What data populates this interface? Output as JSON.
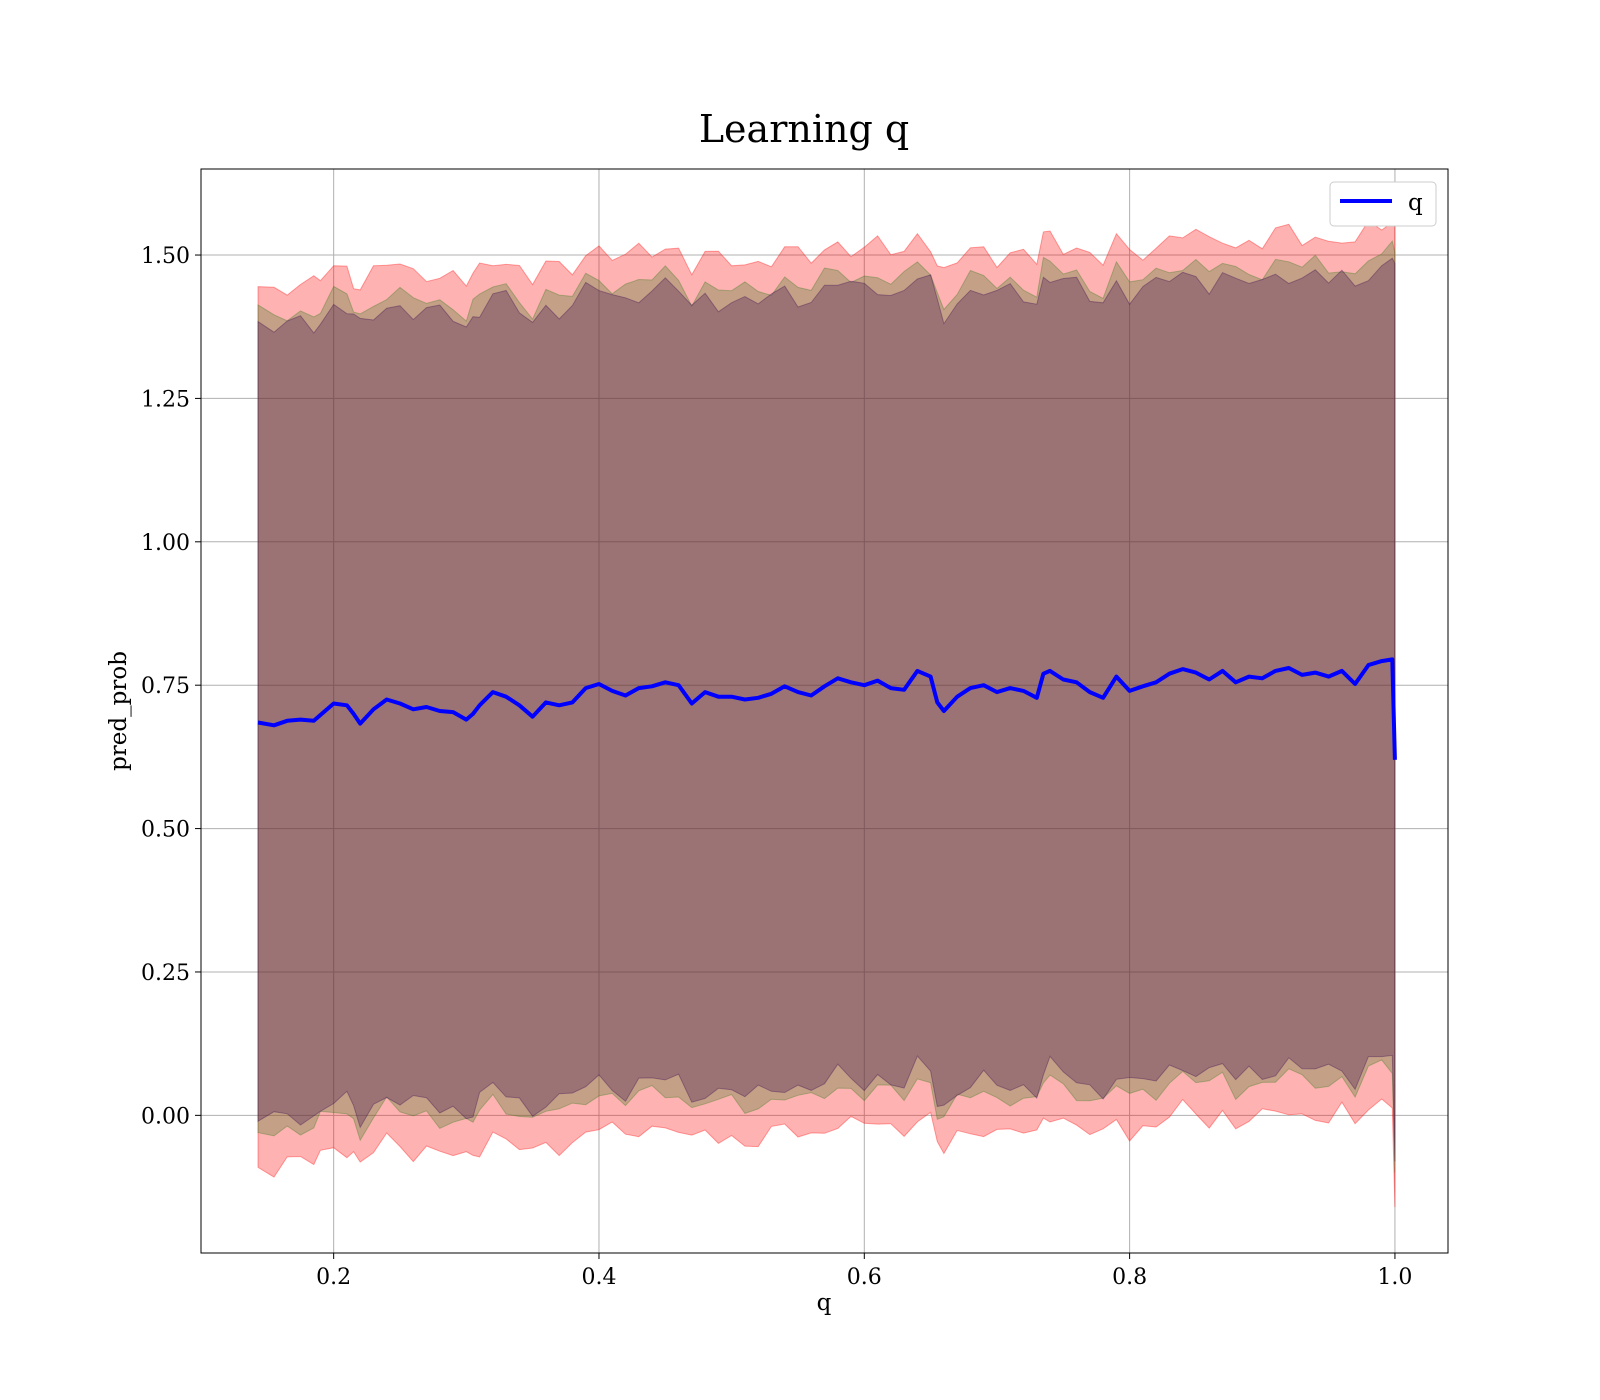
{
  "chart_data": {
    "type": "line",
    "title": "Learning q",
    "xlabel": "q",
    "ylabel": "pred_prob",
    "xlim": [
      0.1,
      1.04
    ],
    "ylim": [
      -0.24,
      1.65
    ],
    "xticks": [
      0.2,
      0.4,
      0.6,
      0.8,
      1.0
    ],
    "xtick_labels": [
      "0.2",
      "0.4",
      "0.6",
      "0.8",
      "1.0"
    ],
    "yticks": [
      0.0,
      0.25,
      0.5,
      0.75,
      1.0,
      1.25,
      1.5
    ],
    "ytick_labels": [
      "0.00",
      "0.25",
      "0.50",
      "0.75",
      "1.00",
      "1.25",
      "1.50"
    ],
    "grid": true,
    "legend_position": "top-right",
    "series": [
      {
        "name": "q",
        "color": "#0000ff",
        "x": [
          0.143,
          0.155,
          0.165,
          0.175,
          0.185,
          0.19,
          0.2,
          0.21,
          0.215,
          0.22,
          0.23,
          0.24,
          0.25,
          0.26,
          0.27,
          0.28,
          0.29,
          0.3,
          0.305,
          0.31,
          0.32,
          0.33,
          0.34,
          0.35,
          0.36,
          0.37,
          0.38,
          0.39,
          0.4,
          0.41,
          0.42,
          0.43,
          0.44,
          0.45,
          0.46,
          0.47,
          0.48,
          0.49,
          0.5,
          0.51,
          0.52,
          0.53,
          0.54,
          0.55,
          0.56,
          0.57,
          0.58,
          0.59,
          0.6,
          0.61,
          0.62,
          0.63,
          0.64,
          0.65,
          0.655,
          0.66,
          0.67,
          0.68,
          0.69,
          0.7,
          0.71,
          0.72,
          0.73,
          0.735,
          0.74,
          0.75,
          0.76,
          0.77,
          0.78,
          0.79,
          0.8,
          0.81,
          0.82,
          0.83,
          0.84,
          0.85,
          0.86,
          0.87,
          0.88,
          0.89,
          0.9,
          0.91,
          0.92,
          0.93,
          0.94,
          0.95,
          0.96,
          0.97,
          0.98,
          0.99,
          0.998,
          1.0
        ],
        "y": [
          0.685,
          0.68,
          0.688,
          0.69,
          0.688,
          0.698,
          0.718,
          0.715,
          0.7,
          0.683,
          0.708,
          0.725,
          0.718,
          0.708,
          0.712,
          0.705,
          0.703,
          0.69,
          0.7,
          0.715,
          0.738,
          0.73,
          0.715,
          0.695,
          0.72,
          0.715,
          0.72,
          0.745,
          0.752,
          0.74,
          0.732,
          0.745,
          0.748,
          0.755,
          0.75,
          0.718,
          0.738,
          0.73,
          0.73,
          0.725,
          0.728,
          0.735,
          0.748,
          0.738,
          0.732,
          0.748,
          0.762,
          0.755,
          0.75,
          0.758,
          0.745,
          0.742,
          0.775,
          0.765,
          0.72,
          0.705,
          0.73,
          0.745,
          0.75,
          0.738,
          0.745,
          0.74,
          0.728,
          0.77,
          0.775,
          0.76,
          0.755,
          0.738,
          0.728,
          0.765,
          0.74,
          0.748,
          0.755,
          0.77,
          0.778,
          0.772,
          0.76,
          0.775,
          0.755,
          0.765,
          0.762,
          0.775,
          0.78,
          0.768,
          0.772,
          0.765,
          0.775,
          0.752,
          0.785,
          0.792,
          0.795,
          0.62
        ]
      }
    ],
    "bands": [
      {
        "color": "#ff0000",
        "opacity": 0.3,
        "upper_offset": 0.76,
        "lower_offset": -0.77
      },
      {
        "color": "#3a7a20",
        "opacity": 0.3,
        "upper_offset": 0.71,
        "lower_offset": -0.71
      },
      {
        "color": "#3a0a50",
        "opacity": 0.3,
        "upper_offset": 0.69,
        "lower_offset": -0.69
      }
    ]
  }
}
